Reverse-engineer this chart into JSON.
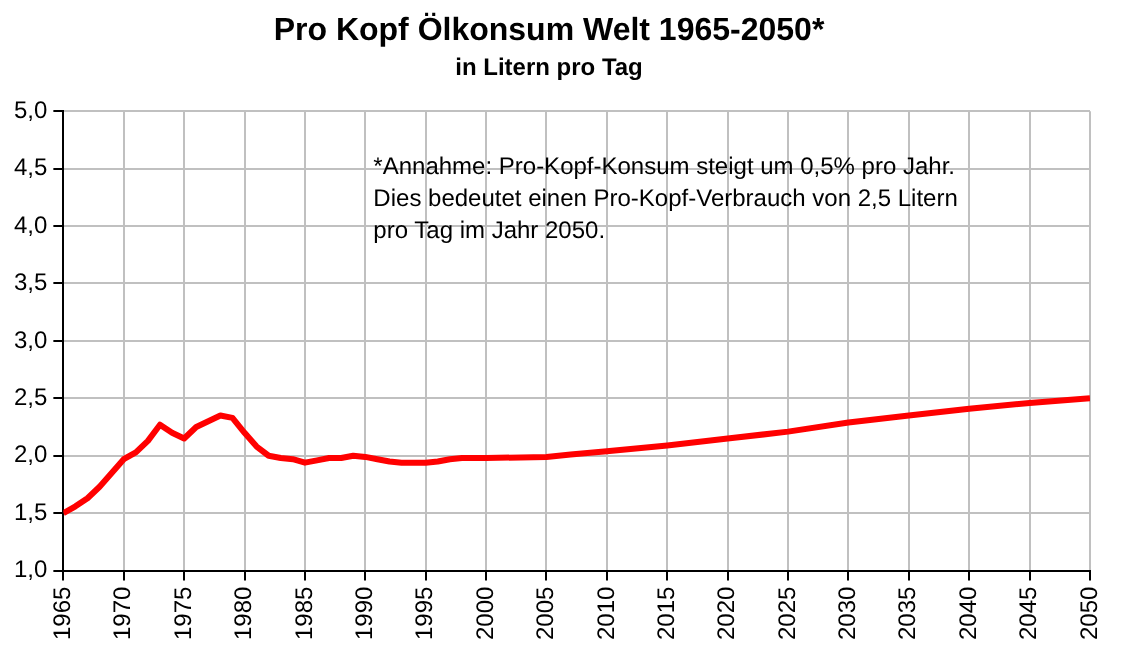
{
  "chart_data": {
    "type": "line",
    "title": "Pro Kopf Ölkonsum Welt 1965-2050*",
    "subtitle": "in Litern pro Tag",
    "annotations": [
      "*Annahme: Pro-Kopf-Konsum steigt um 0,5% pro Jahr.\nDies bedeutet einen Pro-Kopf-Verbrauch von 2,5 Litern\npro Tag im Jahr 2050."
    ],
    "x": [
      1965,
      1966,
      1967,
      1968,
      1969,
      1970,
      1971,
      1972,
      1973,
      1974,
      1975,
      1976,
      1977,
      1978,
      1979,
      1980,
      1981,
      1982,
      1983,
      1984,
      1985,
      1986,
      1987,
      1988,
      1989,
      1990,
      1991,
      1992,
      1993,
      1994,
      1995,
      1996,
      1997,
      1998,
      2000,
      2005,
      2007,
      2010,
      2015,
      2020,
      2025,
      2030,
      2035,
      2040,
      2045,
      2050
    ],
    "series": [
      {
        "color": "#ff0000",
        "values": [
          1.5,
          1.56,
          1.63,
          1.73,
          1.85,
          1.97,
          2.03,
          2.13,
          2.27,
          2.2,
          2.15,
          2.25,
          2.3,
          2.35,
          2.33,
          2.2,
          2.08,
          2.0,
          1.98,
          1.97,
          1.94,
          1.96,
          1.98,
          1.98,
          2.0,
          1.99,
          1.97,
          1.95,
          1.94,
          1.94,
          1.94,
          1.95,
          1.97,
          1.98,
          1.98,
          1.99,
          2.01,
          2.04,
          2.09,
          2.15,
          2.21,
          2.29,
          2.35,
          2.41,
          2.46,
          2.5
        ]
      }
    ],
    "xlim": [
      1965,
      2050
    ],
    "xticks": [
      1965,
      1970,
      1975,
      1980,
      1985,
      1990,
      1995,
      2000,
      2005,
      2010,
      2015,
      2020,
      2025,
      2030,
      2035,
      2040,
      2045,
      2050
    ],
    "ylim": [
      1.0,
      5.0
    ],
    "yticks": [
      {
        "value": 1.0,
        "label": "1,0"
      },
      {
        "value": 1.5,
        "label": "1,5"
      },
      {
        "value": 2.0,
        "label": "2,0"
      },
      {
        "value": 2.5,
        "label": "2,5"
      },
      {
        "value": 3.0,
        "label": "3,0"
      },
      {
        "value": 3.5,
        "label": "3,5"
      },
      {
        "value": 4.0,
        "label": "4,0"
      },
      {
        "value": 4.5,
        "label": "4,5"
      },
      {
        "value": 5.0,
        "label": "5,0"
      }
    ],
    "grid": true,
    "legend": false,
    "marker": "none",
    "line_style": "solid"
  }
}
